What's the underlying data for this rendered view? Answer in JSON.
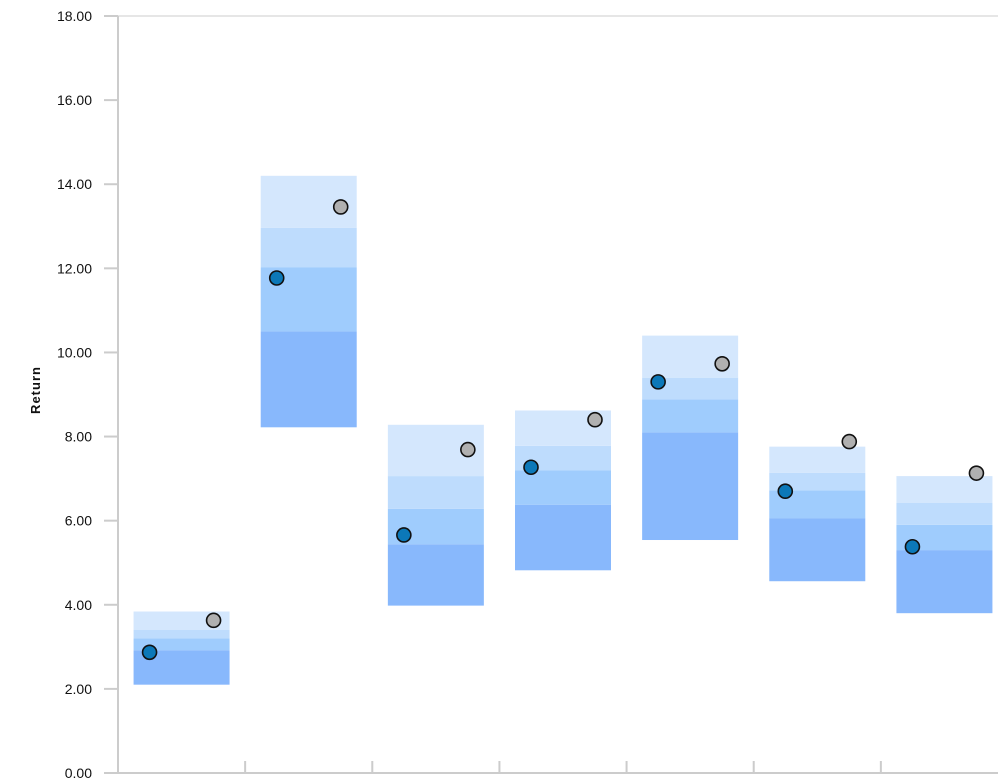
{
  "chart_data": {
    "type": "floating-bar-range",
    "title": "",
    "xlabel": "",
    "ylabel": "Return",
    "ylim": [
      0,
      18
    ],
    "yticks": [
      "0.00",
      "2.00",
      "4.00",
      "6.00",
      "8.00",
      "10.00",
      "12.00",
      "14.00",
      "16.00",
      "18.00"
    ],
    "grid": false,
    "colors": {
      "band_bottom": "#88b8fc",
      "band_lower_mid": "#9fccfd",
      "band_upper_mid": "#bedcfd",
      "band_top": "#d4e7fd",
      "marker_blue": "#0c78b8",
      "marker_gray": "#b0b0b0",
      "axis": "#cccccc"
    },
    "groups": [
      {
        "bands": [
          2.1,
          2.92,
          3.2,
          3.4,
          3.84
        ],
        "blue": 2.87,
        "gray": 3.63
      },
      {
        "bands": [
          8.22,
          10.5,
          12.02,
          12.96,
          14.2
        ],
        "blue": 11.77,
        "gray": 13.46
      },
      {
        "bands": [
          3.98,
          5.44,
          6.28,
          7.06,
          8.28
        ],
        "blue": 5.66,
        "gray": 7.69
      },
      {
        "bands": [
          4.82,
          6.38,
          7.2,
          7.78,
          8.62
        ],
        "blue": 7.27,
        "gray": 8.4
      },
      {
        "bands": [
          5.54,
          8.1,
          8.88,
          9.4,
          10.4
        ],
        "blue": 9.3,
        "gray": 9.73
      },
      {
        "bands": [
          4.56,
          6.06,
          6.72,
          7.14,
          7.76
        ],
        "blue": 6.7,
        "gray": 7.88
      },
      {
        "bands": [
          3.8,
          5.3,
          5.9,
          6.42,
          7.06
        ],
        "blue": 5.38,
        "gray": 7.13
      }
    ]
  }
}
